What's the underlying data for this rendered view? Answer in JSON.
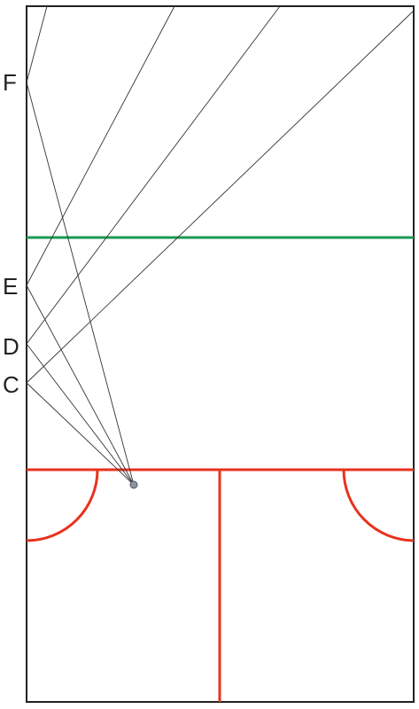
{
  "labels": [
    "F",
    "E",
    "D",
    "C"
  ]
}
